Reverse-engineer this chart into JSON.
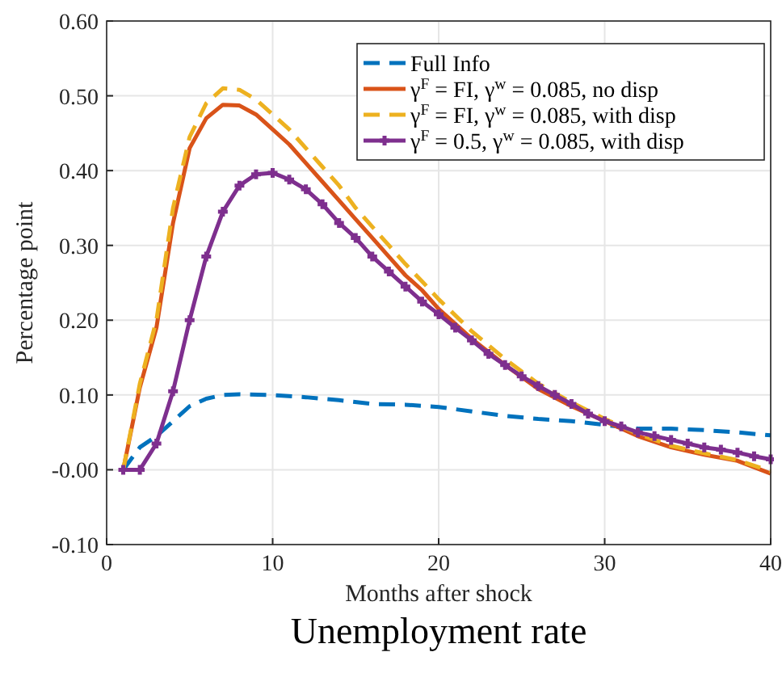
{
  "chart_data": {
    "type": "line",
    "title": "Unemployment rate",
    "xlabel": "Months after shock",
    "ylabel": "Percentage point",
    "xlim": [
      0,
      40
    ],
    "xticks": [
      0,
      10,
      20,
      30,
      40
    ],
    "ylim": [
      -0.1,
      0.6
    ],
    "yticks": [
      {
        "value": -0.1,
        "label": "-0.10"
      },
      {
        "value": 0,
        "label": "-0.00"
      },
      {
        "value": 0.1,
        "label": "0.10"
      },
      {
        "value": 0.2,
        "label": "0.20"
      },
      {
        "value": 0.3,
        "label": "0.30"
      },
      {
        "value": 0.4,
        "label": "0.40"
      },
      {
        "value": 0.5,
        "label": "0.50"
      },
      {
        "value": 0.6,
        "label": "0.60"
      }
    ],
    "grid": true,
    "legend": "top right",
    "series": [
      {
        "name": "Full Info",
        "color": "#0072bd",
        "line_style": "dashed",
        "marker": "none",
        "x": [
          1,
          2,
          3,
          4,
          5,
          6,
          7,
          8,
          10,
          12,
          14,
          16,
          18,
          20,
          22,
          24,
          26,
          28,
          30,
          32,
          34,
          36,
          38,
          40
        ],
        "values": [
          0,
          0.03,
          0.045,
          0.065,
          0.085,
          0.095,
          0.1,
          0.101,
          0.1,
          0.097,
          0.093,
          0.088,
          0.087,
          0.084,
          0.078,
          0.072,
          0.068,
          0.065,
          0.06,
          0.055,
          0.055,
          0.053,
          0.05,
          0.046
        ]
      },
      {
        "name": "γ$^{F}$ = FI, γ$^{w}$ = 0.085, no disp",
        "color": "#d95319",
        "line_style": "solid",
        "marker": "none",
        "x": [
          1,
          2,
          3,
          4,
          5,
          6,
          7,
          8,
          9,
          10,
          11,
          12,
          13,
          14,
          15,
          16,
          17,
          18,
          19,
          20,
          22,
          24,
          26,
          28,
          30,
          32,
          34,
          36,
          38,
          40
        ],
        "values": [
          0,
          0.11,
          0.19,
          0.33,
          0.43,
          0.47,
          0.488,
          0.487,
          0.475,
          0.455,
          0.435,
          0.41,
          0.385,
          0.36,
          0.335,
          0.31,
          0.285,
          0.26,
          0.24,
          0.215,
          0.175,
          0.14,
          0.108,
          0.085,
          0.065,
          0.045,
          0.03,
          0.02,
          0.012,
          -0.005
        ]
      },
      {
        "name": "γ$^{F}$ = FI, γ$^{w}$ = 0.085, with disp",
        "color": "#edb120",
        "line_style": "dashed",
        "marker": "none",
        "x": [
          1,
          2,
          3,
          4,
          5,
          6,
          7,
          8,
          9,
          10,
          11,
          12,
          13,
          14,
          15,
          16,
          17,
          18,
          19,
          20,
          22,
          24,
          26,
          28,
          30,
          32,
          34,
          36,
          38,
          40
        ],
        "values": [
          0,
          0.115,
          0.2,
          0.35,
          0.445,
          0.49,
          0.51,
          0.508,
          0.495,
          0.475,
          0.455,
          0.43,
          0.405,
          0.38,
          0.35,
          0.325,
          0.3,
          0.275,
          0.252,
          0.228,
          0.185,
          0.148,
          0.115,
          0.09,
          0.068,
          0.048,
          0.032,
          0.022,
          0.013,
          -0.002
        ]
      },
      {
        "name": "γ$^{F}$ = 0.5, γ$^{w}$ = 0.085, with disp",
        "color": "#7e2f8e",
        "line_style": "solid",
        "marker": "cross",
        "x": [
          1,
          2,
          3,
          4,
          5,
          6,
          7,
          8,
          9,
          10,
          11,
          12,
          13,
          14,
          15,
          16,
          17,
          18,
          19,
          20,
          21,
          22,
          23,
          24,
          25,
          26,
          27,
          28,
          29,
          30,
          31,
          32,
          33,
          34,
          35,
          36,
          37,
          38,
          39,
          40
        ],
        "values": [
          0,
          0,
          0.035,
          0.105,
          0.2,
          0.285,
          0.345,
          0.38,
          0.395,
          0.397,
          0.388,
          0.375,
          0.355,
          0.33,
          0.31,
          0.285,
          0.265,
          0.245,
          0.225,
          0.208,
          0.19,
          0.173,
          0.155,
          0.14,
          0.125,
          0.112,
          0.1,
          0.088,
          0.075,
          0.065,
          0.058,
          0.05,
          0.045,
          0.04,
          0.035,
          0.03,
          0.027,
          0.023,
          0.018,
          0.014
        ]
      }
    ]
  }
}
